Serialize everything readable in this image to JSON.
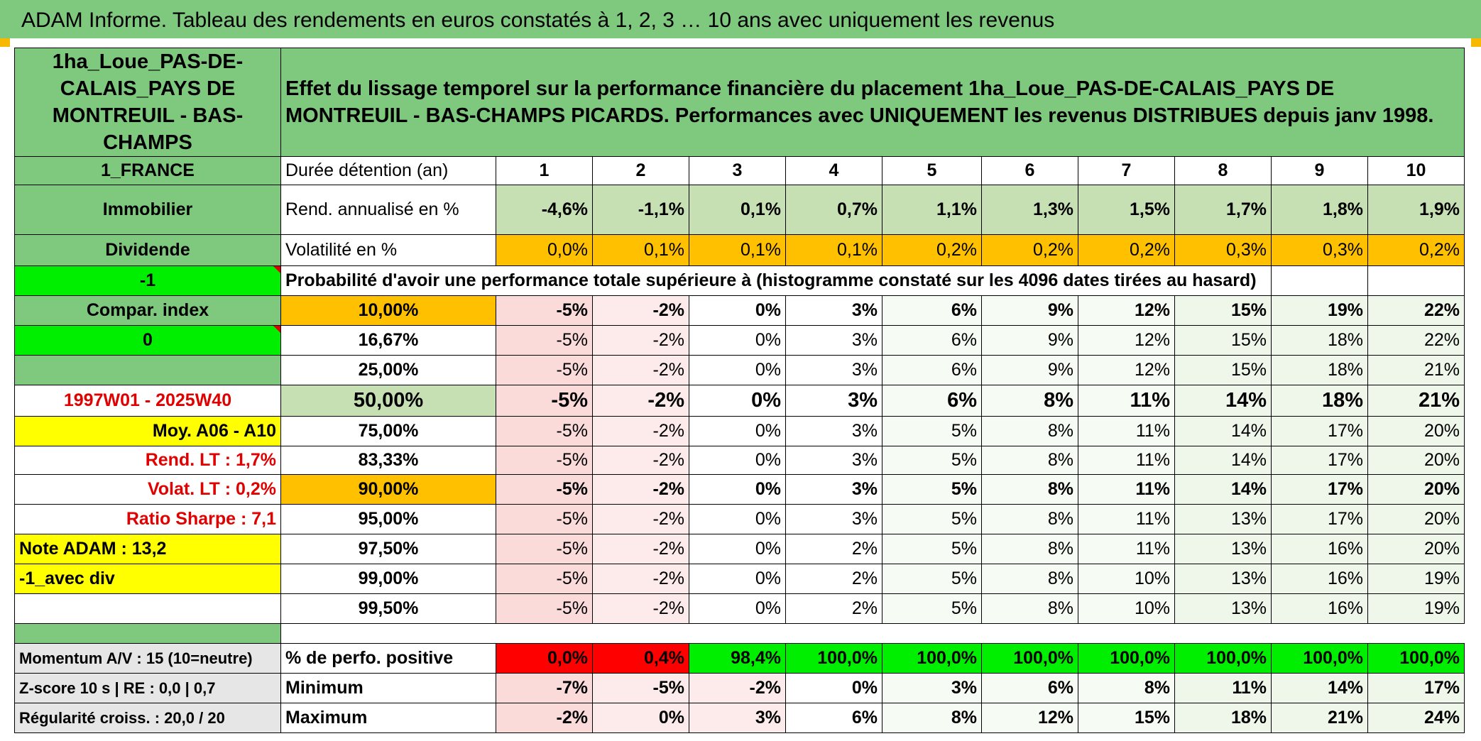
{
  "title": "ADAM Informe. Tableau des rendements en euros constatés à 1, 2, 3 … 10 ans avec uniquement les revenus",
  "left": {
    "name": "1ha_Loue_PAS-DE-CALAIS_PAYS DE MONTREUIL - BAS-CHAMPS",
    "country": "1_FRANCE",
    "category": "Immobilier",
    "dividend": "Dividende",
    "minus_one": "-1",
    "compar_index": "Compar. index",
    "zero": "0",
    "period": "1997W01 - 2025W40",
    "moy": "Moy. A06 - A10",
    "rend_lt": "Rend. LT :   1,7%",
    "volat_lt": "Volat. LT :   0,2%",
    "sharpe": "Ratio Sharpe :   7,1",
    "note": "Note ADAM : 13,2",
    "avec_div": "-1_avec div",
    "momentum": "Momentum A/V : 15 (10=neutre)",
    "zscore": "Z-score 10 s | RE : 0,0 | 0,7",
    "regularite": "Régularité croiss. : 20,0 / 20"
  },
  "header_text": "Effet du lissage temporel sur la performance financière du placement 1ha_Loue_PAS-DE-CALAIS_PAYS DE MONTREUIL - BAS-CHAMPS PICARDS. Performances avec UNIQUEMENT les revenus DISTRIBUES depuis janv 1998.",
  "durations_label": "Durée détention (an)",
  "years": [
    "1",
    "2",
    "3",
    "4",
    "5",
    "6",
    "7",
    "8",
    "9",
    "10"
  ],
  "rend_label": "Rend. annualisé en %",
  "rend": [
    "-4,6%",
    "-1,1%",
    "0,1%",
    "0,7%",
    "1,1%",
    "1,3%",
    "1,5%",
    "1,7%",
    "1,8%",
    "1,9%"
  ],
  "vol_label": "Volatilité en %",
  "vol": [
    "0,0%",
    "0,1%",
    "0,1%",
    "0,1%",
    "0,2%",
    "0,2%",
    "0,2%",
    "0,3%",
    "0,3%",
    "0,2%"
  ],
  "prob_label": "Probabilité d'avoir une performance totale supérieure à (histogramme constaté sur les 4096 dates tirées au hasard)",
  "percentiles": [
    {
      "p": "10,00%",
      "v": [
        "-5%",
        "-2%",
        "0%",
        "3%",
        "6%",
        "9%",
        "12%",
        "15%",
        "19%",
        "22%"
      ]
    },
    {
      "p": "16,67%",
      "v": [
        "-5%",
        "-2%",
        "0%",
        "3%",
        "6%",
        "9%",
        "12%",
        "15%",
        "18%",
        "22%"
      ]
    },
    {
      "p": "25,00%",
      "v": [
        "-5%",
        "-2%",
        "0%",
        "3%",
        "6%",
        "9%",
        "12%",
        "15%",
        "18%",
        "21%"
      ]
    },
    {
      "p": "50,00%",
      "v": [
        "-5%",
        "-2%",
        "0%",
        "3%",
        "6%",
        "8%",
        "11%",
        "14%",
        "18%",
        "21%"
      ]
    },
    {
      "p": "75,00%",
      "v": [
        "-5%",
        "-2%",
        "0%",
        "3%",
        "5%",
        "8%",
        "11%",
        "14%",
        "17%",
        "20%"
      ]
    },
    {
      "p": "83,33%",
      "v": [
        "-5%",
        "-2%",
        "0%",
        "3%",
        "5%",
        "8%",
        "11%",
        "14%",
        "17%",
        "20%"
      ]
    },
    {
      "p": "90,00%",
      "v": [
        "-5%",
        "-2%",
        "0%",
        "3%",
        "5%",
        "8%",
        "11%",
        "14%",
        "17%",
        "20%"
      ]
    },
    {
      "p": "95,00%",
      "v": [
        "-5%",
        "-2%",
        "0%",
        "3%",
        "5%",
        "8%",
        "11%",
        "13%",
        "17%",
        "20%"
      ]
    },
    {
      "p": "97,50%",
      "v": [
        "-5%",
        "-2%",
        "0%",
        "2%",
        "5%",
        "8%",
        "11%",
        "13%",
        "16%",
        "20%"
      ]
    },
    {
      "p": "99,00%",
      "v": [
        "-5%",
        "-2%",
        "0%",
        "2%",
        "5%",
        "8%",
        "10%",
        "13%",
        "16%",
        "19%"
      ]
    },
    {
      "p": "99,50%",
      "v": [
        "-5%",
        "-2%",
        "0%",
        "2%",
        "5%",
        "8%",
        "10%",
        "13%",
        "16%",
        "19%"
      ]
    }
  ],
  "pos_label": "% de perfo. positive",
  "pos": [
    "0,0%",
    "0,4%",
    "98,4%",
    "100,0%",
    "100,0%",
    "100,0%",
    "100,0%",
    "100,0%",
    "100,0%",
    "100,0%"
  ],
  "min_label": "Minimum",
  "min": [
    "-7%",
    "-5%",
    "-2%",
    "0%",
    "3%",
    "6%",
    "8%",
    "11%",
    "14%",
    "17%"
  ],
  "max_label": "Maximum",
  "max": [
    "-2%",
    "0%",
    "3%",
    "6%",
    "8%",
    "12%",
    "15%",
    "18%",
    "21%",
    "24%"
  ],
  "colors": {
    "title_green": "#7fc97f",
    "light_green": "#c6e0b4",
    "bright_green": "#00ee00",
    "orange": "#ffc000",
    "yellow": "#ffff00",
    "red": "#ff0000",
    "label_red": "#e00000"
  }
}
